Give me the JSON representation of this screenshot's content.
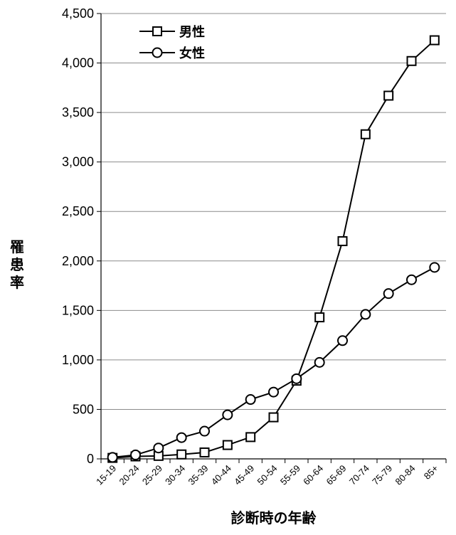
{
  "chart_data": {
    "type": "line",
    "title": "",
    "xlabel": "診断時の年齢",
    "ylabel": "罹患率",
    "ylim": [
      0,
      4500
    ],
    "yticks": [
      0,
      500,
      1000,
      1500,
      2000,
      2500,
      3000,
      3500,
      4000,
      4500
    ],
    "ytick_labels": [
      "0",
      "500",
      "1,000",
      "1,500",
      "2,000",
      "2,500",
      "3,000",
      "3,500",
      "4,000",
      "4,500"
    ],
    "grid": true,
    "legend_position": "top-left",
    "categories": [
      "15-19",
      "20-24",
      "25-29",
      "30-34",
      "35-39",
      "40-44",
      "45-49",
      "50-54",
      "55-59",
      "60-64",
      "65-69",
      "70-74",
      "75-79",
      "80-84",
      "85+"
    ],
    "series": [
      {
        "name": "男性",
        "marker": "square",
        "color": "#000000",
        "values": [
          10,
          25,
          30,
          45,
          65,
          140,
          220,
          420,
          790,
          1430,
          2200,
          3280,
          3670,
          4020,
          4230
        ]
      },
      {
        "name": "女性",
        "marker": "circle",
        "color": "#000000",
        "values": [
          15,
          40,
          110,
          215,
          280,
          445,
          600,
          675,
          810,
          975,
          1195,
          1460,
          1670,
          1810,
          1935
        ]
      }
    ]
  }
}
